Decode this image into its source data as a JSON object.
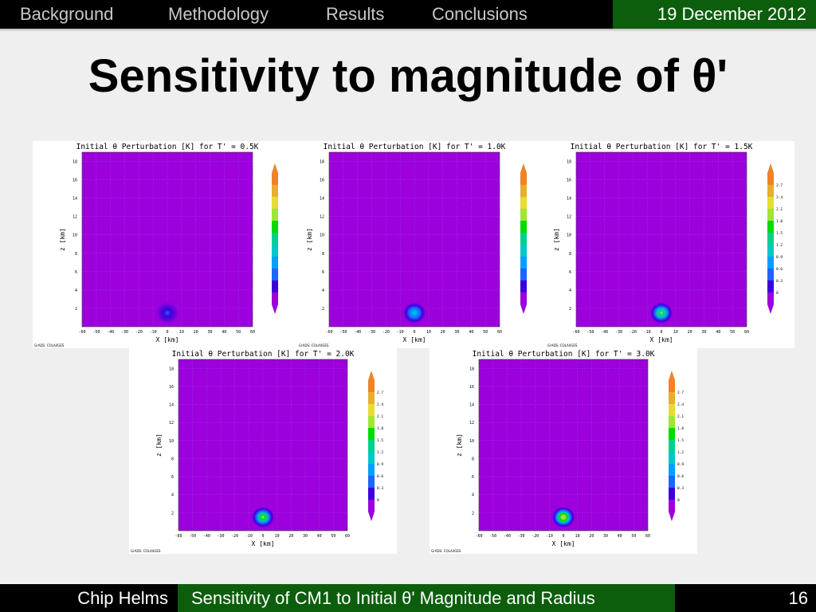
{
  "nav": {
    "items": [
      "Background",
      "Methodology",
      "Results",
      "Conclusions"
    ],
    "date": "19 December 2012"
  },
  "slide": {
    "title": "Sensitivity to magnitude of θ'"
  },
  "footer": {
    "author": "Chip Helms",
    "talk_title": "Sensitivity of CM1 to Initial θ' Magnitude and Radius",
    "page": "16"
  },
  "colors": {
    "header_bg": "#000000",
    "accent_green": "#0c5e0c",
    "plot_fill": "#9b00dd"
  },
  "chart_data": [
    {
      "type": "heatmap",
      "title": "Initial θ Perturbation [K] for T' = 0.5K",
      "xlabel": "X [km]",
      "ylabel": "z [km]",
      "xticks": [
        "-60",
        "-50",
        "-40",
        "-30",
        "-20",
        "-10",
        "0",
        "10",
        "20",
        "30",
        "40",
        "50",
        "60"
      ],
      "yticks": [
        "2",
        "4",
        "6",
        "8",
        "10",
        "12",
        "14",
        "16",
        "18"
      ],
      "xlim": [
        -60,
        60
      ],
      "ylim": [
        0,
        19
      ],
      "colorbar": [],
      "perturbation": {
        "center_x_km": 0,
        "center_z_km": 1.5,
        "magnitude_K": 0.5
      },
      "credit": "GrADS: COLA/IGES"
    },
    {
      "type": "heatmap",
      "title": "Initial θ Perturbation [K] for T' = 1.0K",
      "xlabel": "X [km]",
      "ylabel": "z [km]",
      "xticks": [
        "-60",
        "-50",
        "-40",
        "-30",
        "-20",
        "-10",
        "0",
        "10",
        "20",
        "30",
        "40",
        "50",
        "60"
      ],
      "yticks": [
        "2",
        "4",
        "6",
        "8",
        "10",
        "12",
        "14",
        "16",
        "18"
      ],
      "xlim": [
        -60,
        60
      ],
      "ylim": [
        0,
        19
      ],
      "colorbar": [],
      "perturbation": {
        "center_x_km": 0,
        "center_z_km": 1.5,
        "magnitude_K": 1.0
      },
      "credit": "GrADS: COLA/IGES"
    },
    {
      "type": "heatmap",
      "title": "Initial θ Perturbation [K] for T' = 1.5K",
      "xlabel": "X [km]",
      "ylabel": "z [km]",
      "xticks": [
        "-60",
        "-50",
        "-40",
        "-30",
        "-20",
        "-10",
        "0",
        "10",
        "20",
        "30",
        "40",
        "50",
        "60"
      ],
      "yticks": [
        "2",
        "4",
        "6",
        "8",
        "10",
        "12",
        "14",
        "16",
        "18"
      ],
      "xlim": [
        -60,
        60
      ],
      "ylim": [
        0,
        19
      ],
      "colorbar": [
        "0",
        "0.3",
        "0.6",
        "0.9",
        "1.2",
        "1.5",
        "1.8",
        "2.1",
        "2.4",
        "2.7"
      ],
      "perturbation": {
        "center_x_km": 0,
        "center_z_km": 1.5,
        "magnitude_K": 1.5
      },
      "credit": "GrADS: COLA/IGES"
    },
    {
      "type": "heatmap",
      "title": "Initial θ Perturbation [K] for T' = 2.0K",
      "xlabel": "X [km]",
      "ylabel": "z [km]",
      "xticks": [
        "-60",
        "-50",
        "-40",
        "-30",
        "-20",
        "-10",
        "0",
        "10",
        "20",
        "30",
        "40",
        "50",
        "60"
      ],
      "yticks": [
        "2",
        "4",
        "6",
        "8",
        "10",
        "12",
        "14",
        "16",
        "18"
      ],
      "xlim": [
        -60,
        60
      ],
      "ylim": [
        0,
        19
      ],
      "colorbar": [
        "0",
        "0.3",
        "0.6",
        "0.9",
        "1.2",
        "1.5",
        "1.8",
        "2.1",
        "2.4",
        "2.7"
      ],
      "perturbation": {
        "center_x_km": 0,
        "center_z_km": 1.5,
        "magnitude_K": 2.0
      },
      "credit": "GrADS: COLA/IGES"
    },
    {
      "type": "heatmap",
      "title": "Initial θ Perturbation [K] for T' = 3.0K",
      "xlabel": "X [km]",
      "ylabel": "z [km]",
      "xticks": [
        "-60",
        "-50",
        "-40",
        "-30",
        "-20",
        "-10",
        "0",
        "10",
        "20",
        "30",
        "40",
        "50",
        "60"
      ],
      "yticks": [
        "2",
        "4",
        "6",
        "8",
        "10",
        "12",
        "14",
        "16",
        "18"
      ],
      "xlim": [
        -60,
        60
      ],
      "ylim": [
        0,
        19
      ],
      "colorbar": [
        "0",
        "0.3",
        "0.6",
        "0.9",
        "1.2",
        "1.5",
        "1.8",
        "2.1",
        "2.4",
        "2.7"
      ],
      "perturbation": {
        "center_x_km": 0,
        "center_z_km": 1.5,
        "magnitude_K": 3.0
      },
      "credit": "GrADS: COLA/IGES"
    }
  ]
}
